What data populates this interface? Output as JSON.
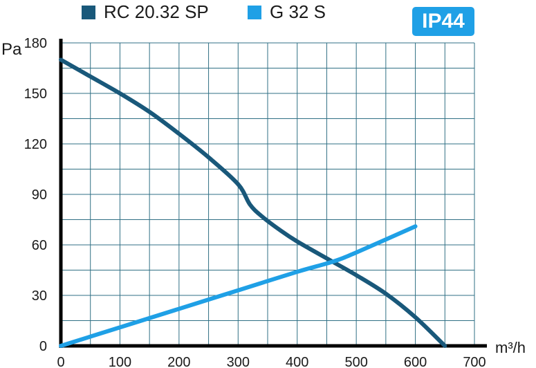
{
  "badge": {
    "text": "IP44",
    "color": "#1fa0e6"
  },
  "chart_data": {
    "type": "line",
    "title": "",
    "xlabel": "m³/h",
    "ylabel": "Pa",
    "xlim": [
      0,
      700
    ],
    "ylim": [
      0,
      180
    ],
    "x_ticks": [
      0,
      100,
      200,
      300,
      400,
      500,
      600,
      700
    ],
    "y_ticks": [
      0,
      30,
      60,
      90,
      120,
      150,
      180
    ],
    "grid": true,
    "legend_position": "top-left",
    "series": [
      {
        "name": "RC 20.32 SP",
        "color": "#19587a",
        "x": [
          0,
          50,
          100,
          150,
          200,
          250,
          300,
          320,
          340,
          370,
          400,
          460,
          500,
          550,
          600,
          650
        ],
        "y": [
          170,
          160,
          150,
          139,
          126,
          112,
          96,
          84,
          77,
          69,
          62,
          50,
          42,
          31,
          17,
          0
        ]
      },
      {
        "name": "G 32 S",
        "color": "#1fa0e6",
        "x": [
          0,
          100,
          200,
          300,
          400,
          460,
          500,
          600
        ],
        "y": [
          0,
          11,
          22,
          33,
          44,
          50,
          55.5,
          71
        ]
      }
    ]
  }
}
